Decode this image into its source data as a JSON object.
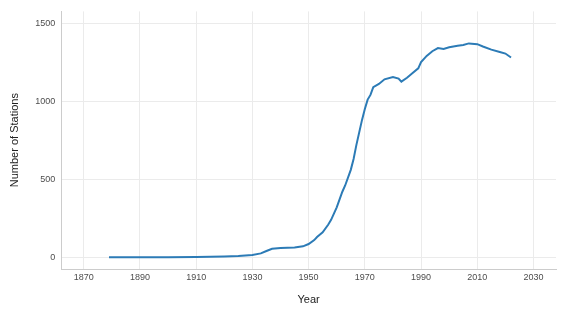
{
  "chart_data": {
    "type": "line",
    "x_label": "Year",
    "y_label": "Number of Stations",
    "x": [
      1879,
      1885,
      1890,
      1900,
      1910,
      1915,
      1920,
      1925,
      1930,
      1933,
      1935,
      1937,
      1940,
      1945,
      1948,
      1950,
      1952,
      1953,
      1955,
      1957,
      1958,
      1960,
      1962,
      1963,
      1965,
      1966,
      1967,
      1968,
      1969,
      1970,
      1971,
      1972,
      1973,
      1975,
      1977,
      1980,
      1982,
      1983,
      1985,
      1987,
      1989,
      1990,
      1992,
      1994,
      1996,
      1998,
      2000,
      2003,
      2005,
      2007,
      2010,
      2012,
      2015,
      2018,
      2020,
      2022
    ],
    "values": [
      0,
      1,
      1,
      1,
      2,
      3,
      5,
      8,
      15,
      25,
      40,
      55,
      60,
      62,
      70,
      85,
      110,
      130,
      160,
      210,
      240,
      320,
      420,
      460,
      560,
      630,
      720,
      800,
      880,
      950,
      1010,
      1040,
      1090,
      1110,
      1140,
      1155,
      1145,
      1125,
      1150,
      1180,
      1210,
      1250,
      1290,
      1320,
      1340,
      1335,
      1345,
      1355,
      1360,
      1370,
      1365,
      1350,
      1330,
      1315,
      1305,
      1280
    ],
    "color": "#2c7bb6",
    "xlim": [
      1862,
      2038
    ],
    "xticks": [
      1870,
      1890,
      1910,
      1930,
      1950,
      1970,
      1990,
      2010,
      2030
    ],
    "ylim": [
      -75,
      1575
    ],
    "yticks": [
      0,
      500,
      1000,
      1500
    ],
    "grid": true
  }
}
